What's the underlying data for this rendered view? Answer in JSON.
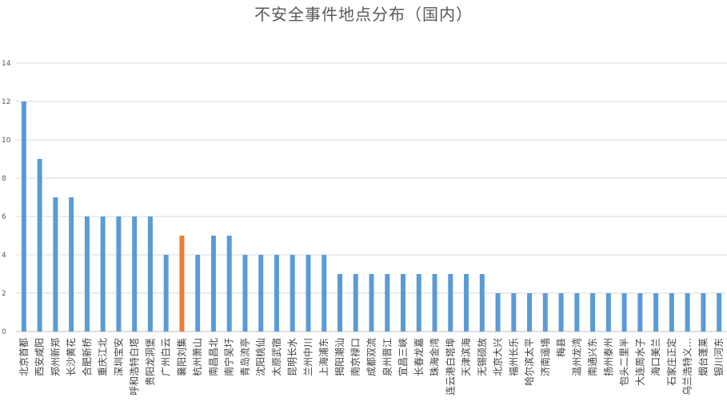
{
  "chart_data": {
    "type": "bar",
    "title": "不安全事件地点分布（国内）",
    "xlabel": "",
    "ylabel": "",
    "ylim": [
      0,
      14
    ],
    "yticks": [
      0,
      2,
      4,
      6,
      8,
      10,
      12,
      14
    ],
    "grid": true,
    "legend": "none",
    "bar_color": "#5B9BD5",
    "highlight_color": "#ED7D31",
    "highlight_index": 10,
    "categories": [
      "北京首都",
      "西安咸阳",
      "郑州新郑",
      "长沙黄花",
      "合肥新桥",
      "重庆江北",
      "深圳宝安",
      "呼和浩特白塔",
      "贵阳龙洞堡",
      "广州白云",
      "襄阳刘集",
      "杭州萧山",
      "南昌昌北",
      "南宁吴圩",
      "青岛流亭",
      "沈阳桃仙",
      "太原武宿",
      "昆明长水",
      "兰州中川",
      "上海浦东",
      "揭阳潮汕",
      "南京禄口",
      "成都双流",
      "泉州晋江",
      "宜昌三峡",
      "长春龙嘉",
      "珠海金湾",
      "连云港白塔埠",
      "天津滨海",
      "无锡硕放",
      "北京大兴",
      "福州长乐",
      "哈尔滨太平",
      "济南遥墙",
      "梅县",
      "温州龙湾",
      "南通兴东",
      "扬州泰州",
      "包头二里半",
      "大连周水子",
      "海口美兰",
      "石家庄正定",
      "乌兰浩特义…",
      "烟台蓬莱",
      "银川河东"
    ],
    "values": [
      12,
      9,
      7,
      7,
      6,
      6,
      6,
      6,
      6,
      4,
      5,
      4,
      5,
      5,
      4,
      4,
      4,
      4,
      4,
      4,
      3,
      3,
      3,
      3,
      3,
      3,
      3,
      3,
      3,
      3,
      2,
      2,
      2,
      2,
      2,
      2,
      2,
      2,
      2,
      2,
      2,
      2,
      2,
      2,
      2
    ]
  }
}
